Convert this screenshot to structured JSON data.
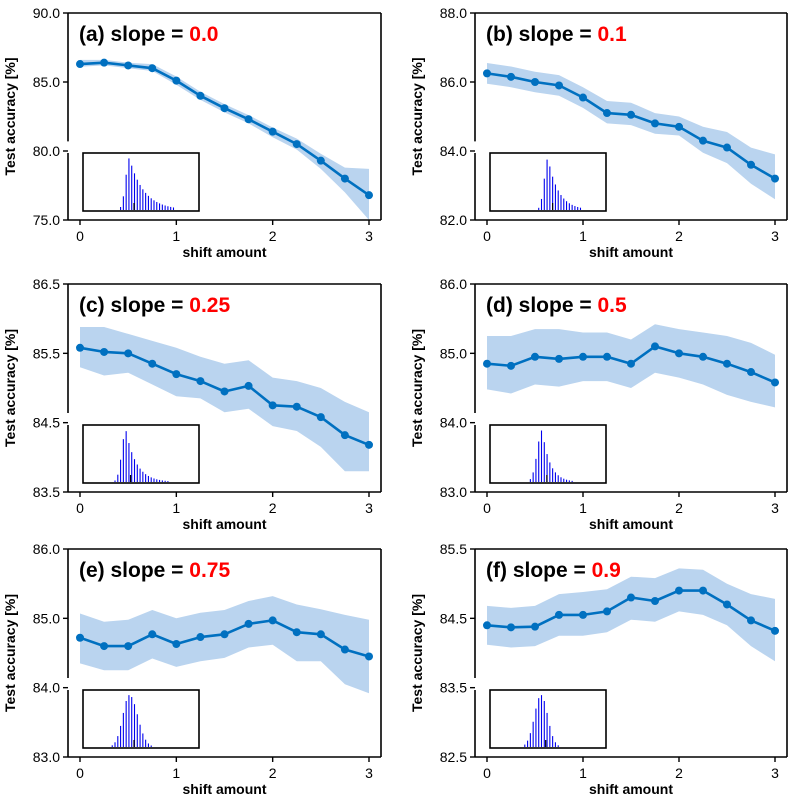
{
  "colors": {
    "line": "#0070c0",
    "band": "#bad4ef",
    "slope_value": "#ff0000",
    "histogram": "#0000ee",
    "axes": "#000000"
  },
  "chart_data": [
    {
      "type": "line",
      "id": "a",
      "title_prefix": "(a) slope = ",
      "title_value": "0.0",
      "xlabel": "shift amount",
      "ylabel": "Test accuracy [%]",
      "xlim": [
        0,
        3
      ],
      "ylim": [
        75.0,
        90.0
      ],
      "xticks": [
        0,
        1,
        2,
        3
      ],
      "yticks": [
        75.0,
        80.0,
        85.0,
        90.0
      ],
      "ytick_labels": [
        "75.0",
        "80.0",
        "85.0",
        "90.0"
      ],
      "x": [
        0,
        0.25,
        0.5,
        0.75,
        1.0,
        1.25,
        1.5,
        1.75,
        2.0,
        2.25,
        2.5,
        2.75,
        3.0
      ],
      "y": [
        86.3,
        86.4,
        86.2,
        86.0,
        85.1,
        84.0,
        83.1,
        82.3,
        81.4,
        80.5,
        79.3,
        78.0,
        76.8
      ],
      "band_upper": [
        86.6,
        86.6,
        86.4,
        86.3,
        85.4,
        84.3,
        83.4,
        82.6,
        81.7,
        80.9,
        79.8,
        78.8,
        78.7
      ],
      "band_lower": [
        86.1,
        86.2,
        86.0,
        85.8,
        84.8,
        83.7,
        82.8,
        82.0,
        81.0,
        80.1,
        78.7,
        77.0,
        75.0
      ],
      "inset_shape": {
        "peak": 0.4,
        "rise": 0.045,
        "fall": 0.28,
        "skew": "right"
      }
    },
    {
      "type": "line",
      "id": "b",
      "title_prefix": "(b) slope = ",
      "title_value": "0.1",
      "xlabel": "shift amount",
      "ylabel": "Test accuracy [%]",
      "xlim": [
        0,
        3
      ],
      "ylim": [
        82.0,
        88.0
      ],
      "xticks": [
        0,
        1,
        2,
        3
      ],
      "yticks": [
        82.0,
        84.0,
        86.0,
        88.0
      ],
      "ytick_labels": [
        "82.0",
        "84.0",
        "86.0",
        "88.0"
      ],
      "x": [
        0,
        0.25,
        0.5,
        0.75,
        1.0,
        1.25,
        1.5,
        1.75,
        2.0,
        2.25,
        2.5,
        2.75,
        3.0
      ],
      "y": [
        86.25,
        86.15,
        86.0,
        85.9,
        85.55,
        85.1,
        85.05,
        84.8,
        84.7,
        84.3,
        84.1,
        83.6,
        83.2
      ],
      "band_upper": [
        86.55,
        86.45,
        86.3,
        86.2,
        85.85,
        85.45,
        85.4,
        85.1,
        85.0,
        84.7,
        84.55,
        84.1,
        83.9
      ],
      "band_lower": [
        85.95,
        85.85,
        85.7,
        85.6,
        85.25,
        84.8,
        84.75,
        84.5,
        84.45,
        83.95,
        83.65,
        83.05,
        82.6
      ],
      "inset_shape": {
        "peak": 0.5,
        "rise": 0.045,
        "fall": 0.2,
        "skew": "right"
      }
    },
    {
      "type": "line",
      "id": "c",
      "title_prefix": "(c) slope = ",
      "title_value": "0.25",
      "xlabel": "shift amount",
      "ylabel": "Test accuracy [%]",
      "xlim": [
        0,
        3
      ],
      "ylim": [
        83.5,
        86.5
      ],
      "xticks": [
        0,
        1,
        2,
        3
      ],
      "yticks": [
        83.5,
        84.5,
        85.5,
        86.5
      ],
      "ytick_labels": [
        "83.5",
        "84.5",
        "85.5",
        "86.5"
      ],
      "x": [
        0,
        0.25,
        0.5,
        0.75,
        1.0,
        1.25,
        1.5,
        1.75,
        2.0,
        2.25,
        2.5,
        2.75,
        3.0
      ],
      "y": [
        85.58,
        85.52,
        85.5,
        85.35,
        85.2,
        85.1,
        84.95,
        85.03,
        84.75,
        84.73,
        84.58,
        84.32,
        84.18
      ],
      "band_upper": [
        85.88,
        85.88,
        85.78,
        85.68,
        85.58,
        85.45,
        85.35,
        85.4,
        85.15,
        85.1,
        85.0,
        84.8,
        84.65
      ],
      "band_lower": [
        85.3,
        85.18,
        85.22,
        85.05,
        84.88,
        84.85,
        84.65,
        84.7,
        84.45,
        84.38,
        84.15,
        83.8,
        83.8
      ],
      "inset_shape": {
        "peak": 0.37,
        "rise": 0.05,
        "fall": 0.2,
        "skew": "right"
      }
    },
    {
      "type": "line",
      "id": "d",
      "title_prefix": "(d) slope = ",
      "title_value": "0.5",
      "xlabel": "shift amount",
      "ylabel": "Test accuracy [%]",
      "xlim": [
        0,
        3
      ],
      "ylim": [
        83.0,
        86.0
      ],
      "xticks": [
        0,
        1,
        2,
        3
      ],
      "yticks": [
        83.0,
        84.0,
        85.0,
        86.0
      ],
      "ytick_labels": [
        "83.0",
        "84.0",
        "85.0",
        "86.0"
      ],
      "x": [
        0,
        0.25,
        0.5,
        0.75,
        1.0,
        1.25,
        1.5,
        1.75,
        2.0,
        2.25,
        2.5,
        2.75,
        3.0
      ],
      "y": [
        84.85,
        84.82,
        84.95,
        84.92,
        84.95,
        84.95,
        84.85,
        85.1,
        85.0,
        84.95,
        84.85,
        84.73,
        84.58
      ],
      "band_upper": [
        85.25,
        85.25,
        85.35,
        85.35,
        85.3,
        85.3,
        85.2,
        85.42,
        85.35,
        85.3,
        85.25,
        85.15,
        84.98
      ],
      "band_lower": [
        84.48,
        84.42,
        84.55,
        84.52,
        84.6,
        84.6,
        84.5,
        84.72,
        84.65,
        84.55,
        84.4,
        84.3,
        84.22
      ],
      "inset_shape": {
        "peak": 0.45,
        "rise": 0.06,
        "fall": 0.15,
        "skew": "right"
      }
    },
    {
      "type": "line",
      "id": "e",
      "title_prefix": "(e) slope = ",
      "title_value": "0.75",
      "xlabel": "shift amount",
      "ylabel": "Test accuracy [%]",
      "xlim": [
        0,
        3
      ],
      "ylim": [
        83.0,
        86.0
      ],
      "xticks": [
        0,
        1,
        2,
        3
      ],
      "yticks": [
        83.0,
        84.0,
        85.0,
        86.0
      ],
      "ytick_labels": [
        "83.0",
        "84.0",
        "85.0",
        "86.0"
      ],
      "x": [
        0,
        0.25,
        0.5,
        0.75,
        1.0,
        1.25,
        1.5,
        1.75,
        2.0,
        2.25,
        2.5,
        2.75,
        3.0
      ],
      "y": [
        84.72,
        84.6,
        84.6,
        84.77,
        84.63,
        84.73,
        84.77,
        84.92,
        84.97,
        84.8,
        84.77,
        84.55,
        84.45
      ],
      "band_upper": [
        85.07,
        84.95,
        84.98,
        85.12,
        85.0,
        85.08,
        85.12,
        85.25,
        85.32,
        85.2,
        85.13,
        85.05,
        84.98
      ],
      "band_lower": [
        84.35,
        84.25,
        84.25,
        84.42,
        84.3,
        84.38,
        84.43,
        84.58,
        84.62,
        84.38,
        84.38,
        84.05,
        83.92
      ],
      "inset_shape": {
        "peak": 0.4,
        "rise": 0.08,
        "fall": 0.1,
        "skew": "none"
      }
    },
    {
      "type": "line",
      "id": "f",
      "title_prefix": "(f) slope = ",
      "title_value": "0.9",
      "xlabel": "shift amount",
      "ylabel": "Test accuracy [%]",
      "xlim": [
        0,
        3
      ],
      "ylim": [
        82.5,
        85.5
      ],
      "xticks": [
        0,
        1,
        2,
        3
      ],
      "yticks": [
        82.5,
        83.5,
        84.5,
        85.5
      ],
      "ytick_labels": [
        "82.5",
        "83.5",
        "84.5",
        "85.5"
      ],
      "x": [
        0,
        0.25,
        0.5,
        0.75,
        1.0,
        1.25,
        1.5,
        1.75,
        2.0,
        2.25,
        2.5,
        2.75,
        3.0
      ],
      "y": [
        84.4,
        84.37,
        84.38,
        84.55,
        84.55,
        84.6,
        84.8,
        84.75,
        84.9,
        84.9,
        84.7,
        84.47,
        84.32
      ],
      "band_upper": [
        84.68,
        84.65,
        84.68,
        84.85,
        84.88,
        84.92,
        85.1,
        85.08,
        85.22,
        85.2,
        85.0,
        84.85,
        84.78
      ],
      "band_lower": [
        84.12,
        84.08,
        84.1,
        84.25,
        84.25,
        84.3,
        84.48,
        84.45,
        84.6,
        84.55,
        84.4,
        84.1,
        83.88
      ],
      "inset_shape": {
        "peak": 0.44,
        "rise": 0.08,
        "fall": 0.08,
        "skew": "none"
      }
    }
  ]
}
